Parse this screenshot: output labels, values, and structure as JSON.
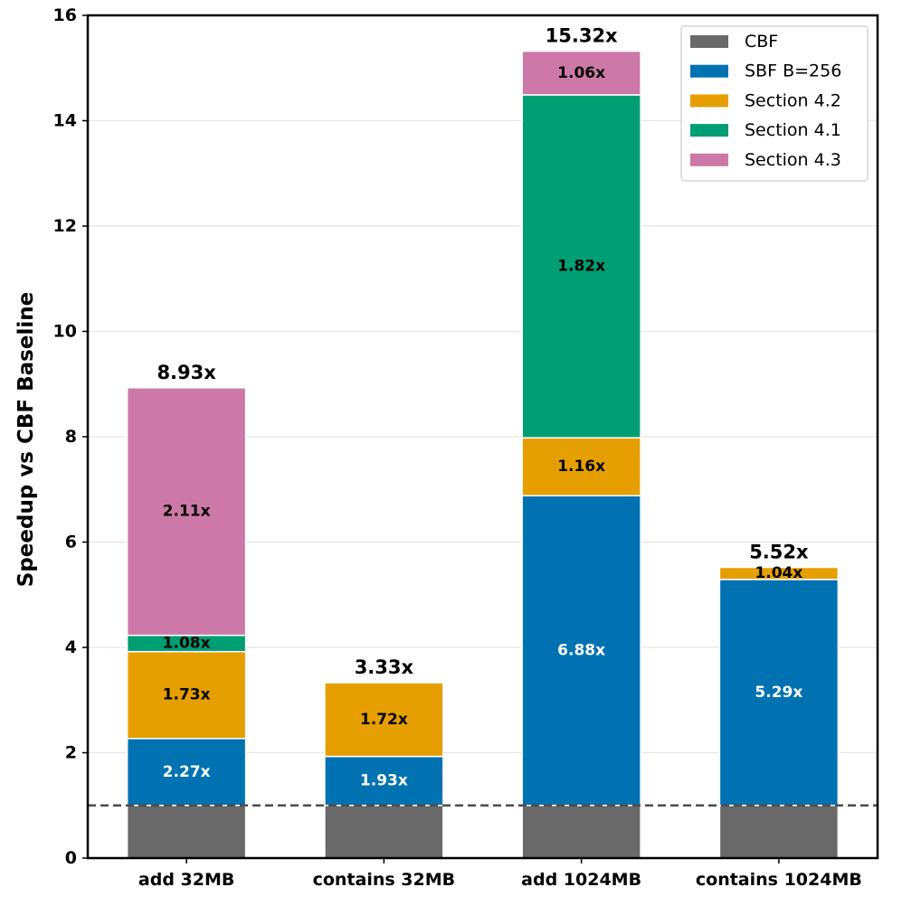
{
  "chart_data": {
    "type": "bar",
    "stacked": true,
    "ylabel": "Speedup vs CBF Baseline",
    "xlabel": "",
    "ylim": [
      0,
      16
    ],
    "yticks": [
      0,
      2,
      4,
      6,
      8,
      10,
      12,
      14,
      16
    ],
    "grid": "horizontal",
    "legend_position": "top-right",
    "baseline": 1.0,
    "categories": [
      "add 32MB",
      "contains 32MB",
      "add 1024MB",
      "contains 1024MB"
    ],
    "totals": [
      "8.93x",
      "3.33x",
      "15.32x",
      "5.52x"
    ],
    "series": [
      {
        "name": "CBF",
        "color": "#696969",
        "values": [
          1.0,
          1.0,
          1.0,
          1.0
        ],
        "labels": [
          "",
          "",
          "",
          ""
        ],
        "label_color": "#000000"
      },
      {
        "name": "SBF B=256",
        "color": "#0072b2",
        "values": [
          1.27,
          0.93,
          5.88,
          4.29
        ],
        "labels": [
          "2.27x",
          "1.93x",
          "6.88x",
          "5.29x"
        ],
        "label_color": "#ffffff"
      },
      {
        "name": "Section 4.2",
        "color": "#e69f00",
        "values": [
          1.65,
          1.4,
          1.1,
          0.23
        ],
        "labels": [
          "1.73x",
          "1.72x",
          "1.16x",
          "1.04x"
        ],
        "label_color": "#000000"
      },
      {
        "name": "Section 4.1",
        "color": "#009e73",
        "values": [
          0.31,
          0,
          6.51,
          0
        ],
        "labels": [
          "1.08x",
          "",
          "1.82x",
          ""
        ],
        "label_color": "#000000"
      },
      {
        "name": "Section 4.3",
        "color": "#cc79a7",
        "values": [
          4.7,
          0,
          0.83,
          0
        ],
        "labels": [
          "2.11x",
          "",
          "1.06x",
          ""
        ],
        "label_color": "#000000"
      }
    ]
  }
}
